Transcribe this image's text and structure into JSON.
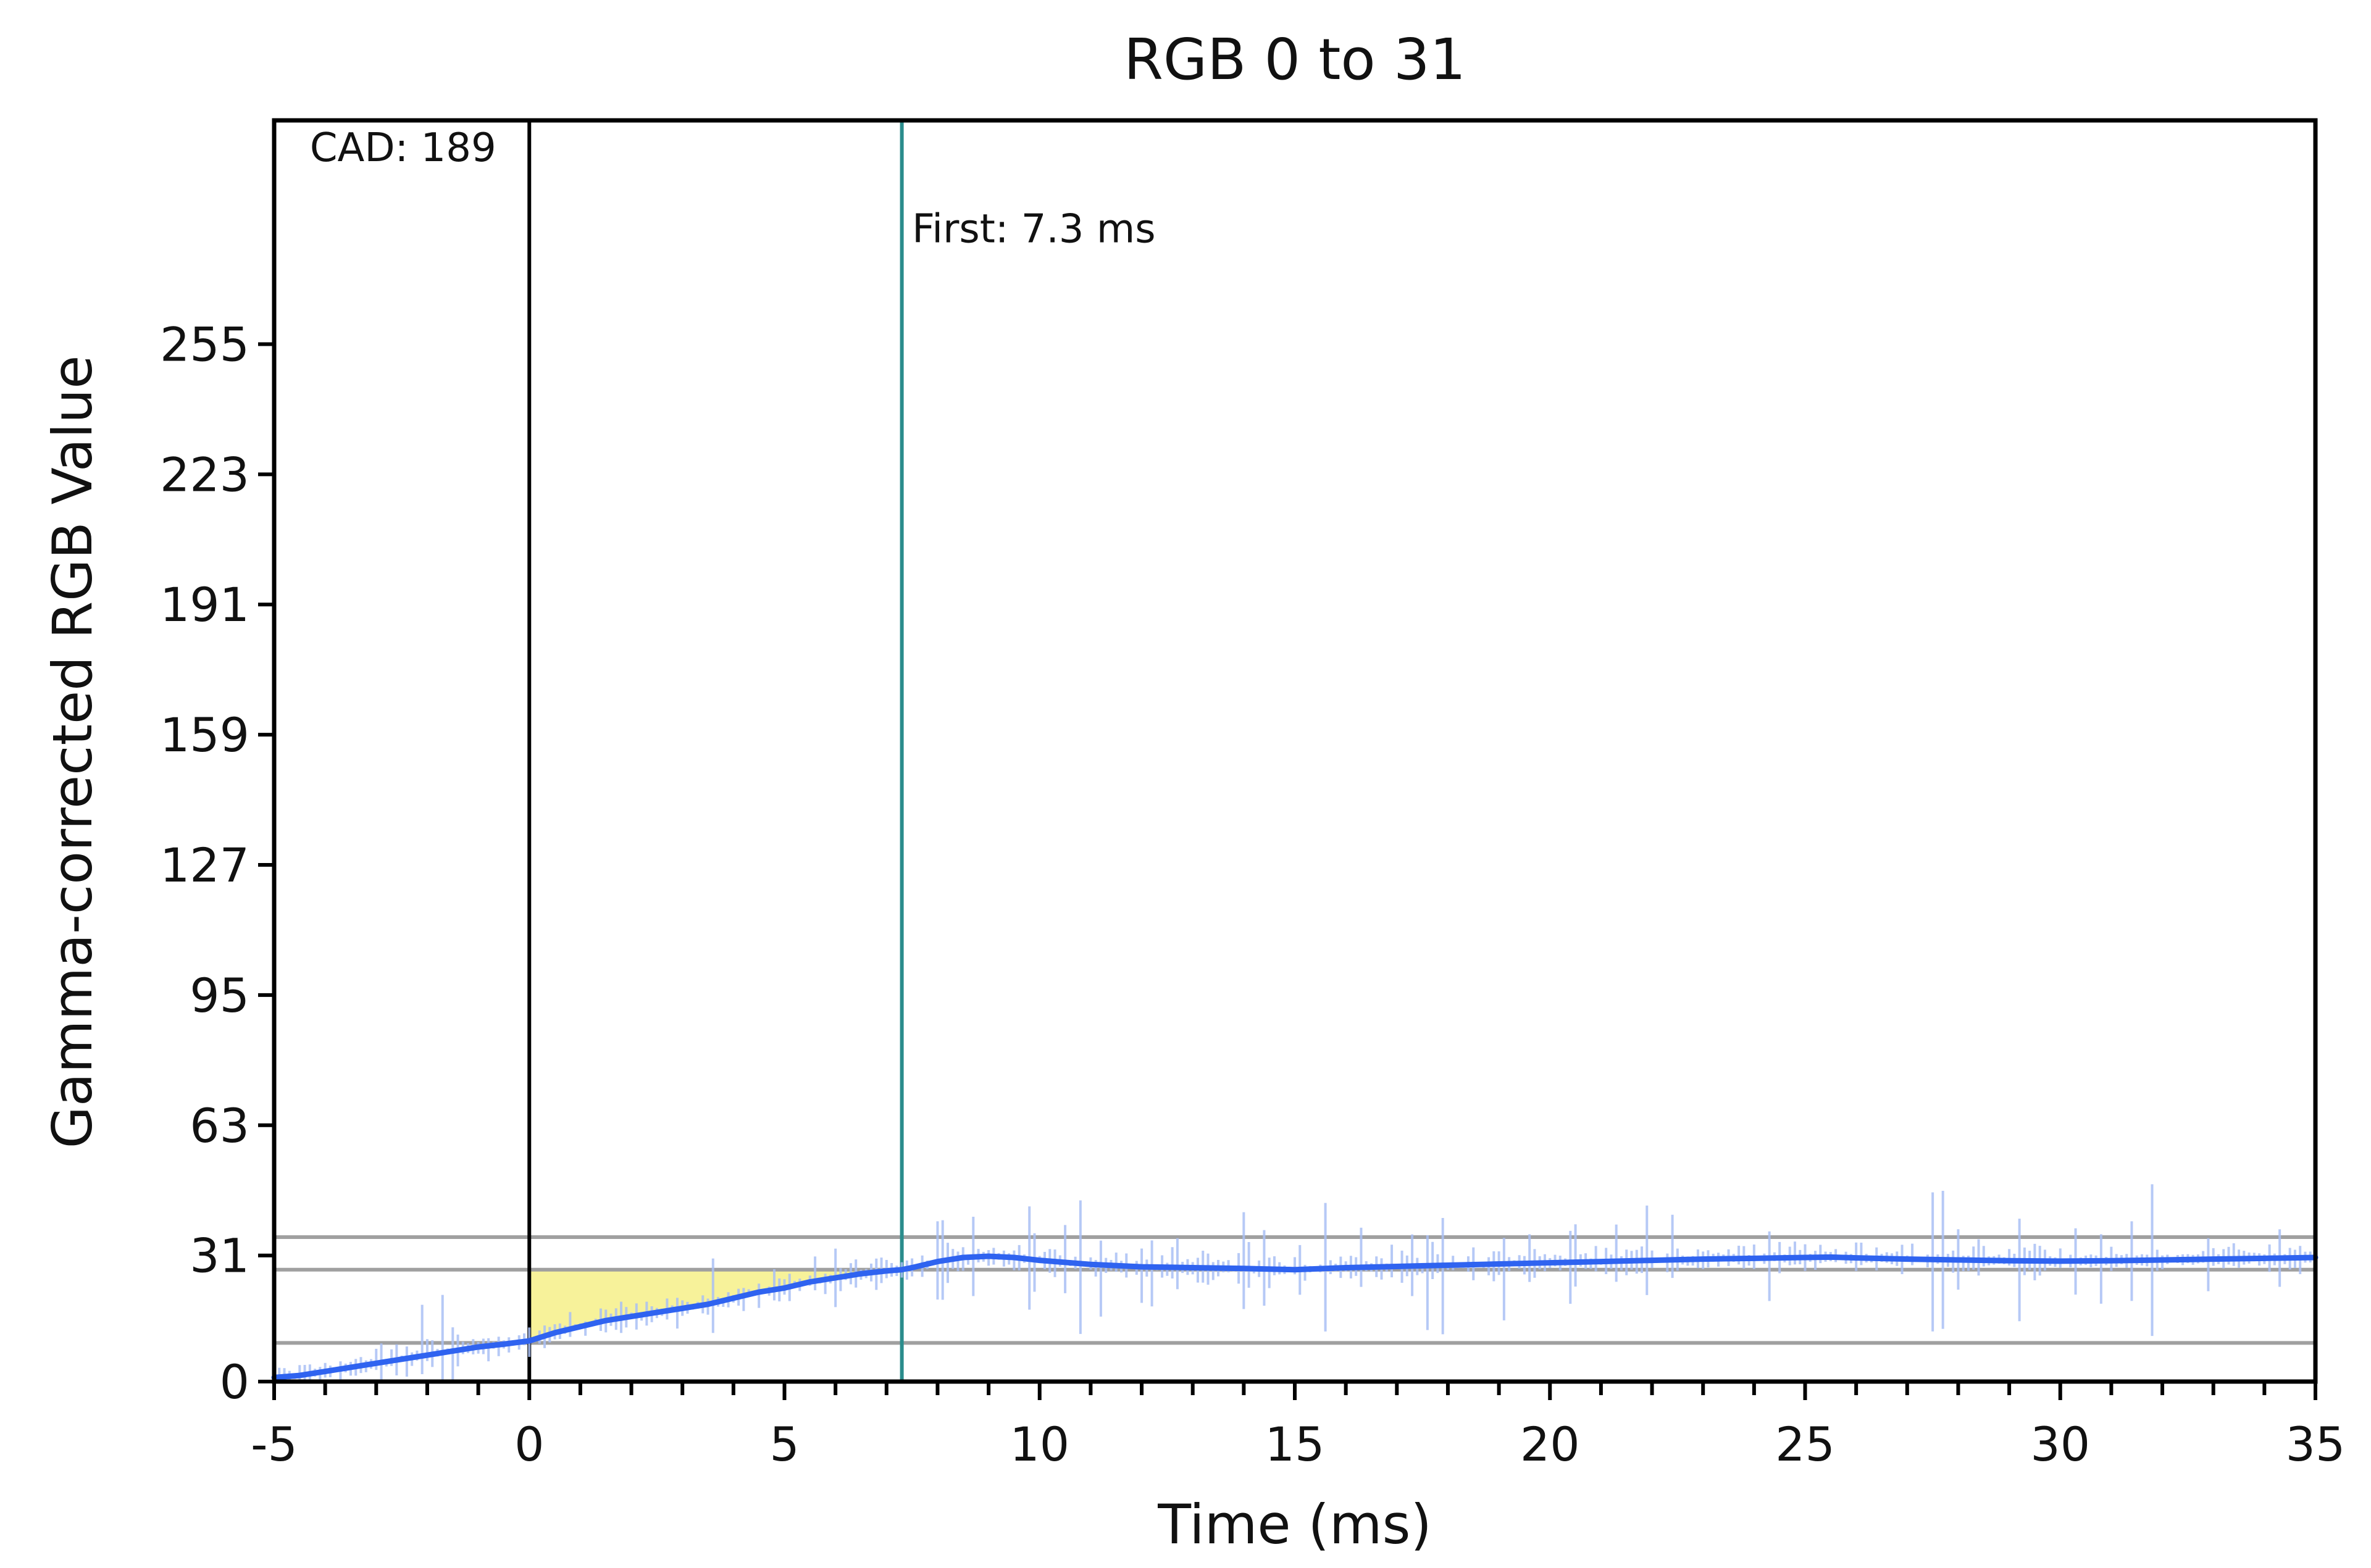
{
  "chart_data": {
    "type": "line",
    "title": "RGB 0 to 31",
    "xlabel": "Time (ms)",
    "ylabel": "Gamma-corrected RGB Value",
    "xlim": [
      -5,
      35
    ],
    "ylim": [
      0,
      310
    ],
    "x_ticks": [
      -5,
      0,
      5,
      10,
      15,
      20,
      25,
      30,
      35
    ],
    "x_tick_labels": [
      "-5",
      "0",
      "5",
      "10",
      "15",
      "20",
      "25",
      "30",
      "35"
    ],
    "y_ticks": [
      0,
      31,
      63,
      95,
      127,
      159,
      191,
      223,
      255
    ],
    "y_tick_labels": [
      "0",
      "31",
      "63",
      "95",
      "127",
      "159",
      "191",
      "223",
      "255"
    ],
    "grid": false,
    "reference_lines": {
      "horizontal": [
        9.5,
        27.5,
        35.5
      ],
      "horizontal_color": "#a0a0a0",
      "start_x": 0,
      "start_color": "#000000",
      "first_x": 7.3,
      "first_color": "#2a8c8c"
    },
    "annotations": [
      {
        "text": "CAD: 189",
        "x": -4.3,
        "y": 300
      },
      {
        "text": "First: 7.3 ms",
        "x": 7.5,
        "y": 280
      }
    ],
    "shaded_region": {
      "x_start": 0,
      "x_end": 7.3,
      "y_top": 27.5,
      "color": "#f7f29a"
    },
    "series": [
      {
        "color": "#2f63f0",
        "raw_color": "#a9bff5",
        "x": [
          -5,
          -4.5,
          -4,
          -3.5,
          -3,
          -2.5,
          -2,
          -1.5,
          -1,
          -0.5,
          0,
          0.5,
          1,
          1.5,
          2,
          2.5,
          3,
          3.5,
          4,
          4.5,
          5,
          5.5,
          6,
          6.5,
          7,
          7.3,
          7.5,
          8,
          8.5,
          9,
          9.5,
          10,
          11,
          12,
          13,
          14,
          15,
          16,
          17,
          18,
          19,
          20,
          21,
          22,
          23,
          24,
          25,
          25.5,
          26,
          27,
          28,
          29,
          30,
          31,
          32,
          33,
          34,
          35
        ],
        "y": [
          1,
          1.5,
          2.5,
          3.5,
          4.5,
          5.5,
          6.5,
          7.5,
          8.5,
          9.2,
          10,
          12,
          13.5,
          15,
          16,
          17,
          18,
          19,
          20.5,
          22,
          23,
          24.5,
          25.5,
          26.5,
          27.2,
          27.5,
          28,
          29.5,
          30.5,
          30.8,
          30.5,
          29.8,
          28.8,
          28.2,
          28,
          27.8,
          27.5,
          28,
          28.3,
          28.6,
          28.9,
          29.2,
          29.5,
          29.8,
          30.1,
          30.3,
          30.5,
          30.6,
          30.4,
          30.1,
          29.9,
          29.7,
          29.6,
          29.7,
          29.9,
          30.1,
          30.3,
          30.5
        ]
      }
    ]
  }
}
